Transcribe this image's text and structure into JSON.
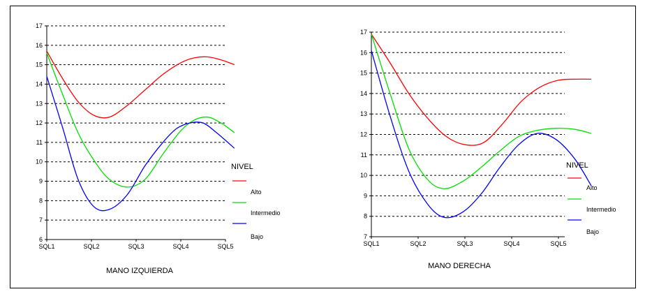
{
  "chart_data": [
    {
      "type": "line",
      "title": "MANO IZQUIERDA",
      "categories": [
        "SQL1",
        "SQL2",
        "SQL3",
        "SQL4",
        "SQL5"
      ],
      "ylim": [
        6,
        17
      ],
      "yticks": [
        6,
        7,
        8,
        9,
        10,
        11,
        12,
        13,
        14,
        15,
        16,
        17
      ],
      "grid": "horizontal dashed",
      "legend": {
        "title": "NIVEL",
        "placement": "right",
        "entries": [
          "Alto",
          "Intermedio",
          "Bajo"
        ]
      },
      "series": [
        {
          "name": "Alto",
          "color": "#ff0000",
          "points": [
            [
              0,
              15.7
            ],
            [
              0.35,
              14.3
            ],
            [
              0.7,
              13.1
            ],
            [
              1.05,
              12.4
            ],
            [
              1.4,
              12.3
            ],
            [
              1.8,
              12.9
            ],
            [
              2.2,
              13.7
            ],
            [
              2.6,
              14.5
            ],
            [
              3.0,
              15.1
            ],
            [
              3.3,
              15.35
            ],
            [
              3.6,
              15.4
            ],
            [
              3.9,
              15.25
            ],
            [
              4.2,
              15.0
            ]
          ]
        },
        {
          "name": "Intermedio",
          "color": "#00e000",
          "points": [
            [
              0,
              15.6
            ],
            [
              0.35,
              13.5
            ],
            [
              0.7,
              11.5
            ],
            [
              1.05,
              10.1
            ],
            [
              1.4,
              9.1
            ],
            [
              1.8,
              8.7
            ],
            [
              2.2,
              9.1
            ],
            [
              2.6,
              10.4
            ],
            [
              3.0,
              11.6
            ],
            [
              3.3,
              12.15
            ],
            [
              3.6,
              12.3
            ],
            [
              3.9,
              12.0
            ],
            [
              4.2,
              11.5
            ]
          ]
        },
        {
          "name": "Bajo",
          "color": "#0000ff",
          "points": [
            [
              0,
              14.4
            ],
            [
              0.35,
              11.8
            ],
            [
              0.7,
              9.1
            ],
            [
              1.05,
              7.7
            ],
            [
              1.4,
              7.55
            ],
            [
              1.8,
              8.3
            ],
            [
              2.2,
              9.8
            ],
            [
              2.6,
              11.0
            ],
            [
              2.9,
              11.7
            ],
            [
              3.2,
              12.0
            ],
            [
              3.5,
              12.0
            ],
            [
              3.8,
              11.5
            ],
            [
              4.2,
              10.7
            ]
          ]
        }
      ]
    },
    {
      "type": "line",
      "title": "MANO DERECHA",
      "categories": [
        "SQL1",
        "SQL2",
        "SQL3",
        "SQL4",
        "SQL5"
      ],
      "ylim": [
        7,
        17
      ],
      "yticks": [
        7,
        8,
        9,
        10,
        11,
        12,
        13,
        14,
        15,
        16,
        17
      ],
      "grid": "horizontal dashed",
      "legend": {
        "title": "NIVEL",
        "placement": "right",
        "entries": [
          "Alto",
          "Intermedio",
          "Bajo"
        ]
      },
      "series": [
        {
          "name": "Alto",
          "color": "#ff0000",
          "points": [
            [
              0,
              16.9
            ],
            [
              0.4,
              15.5
            ],
            [
              0.8,
              14.0
            ],
            [
              1.2,
              12.8
            ],
            [
              1.6,
              11.9
            ],
            [
              2.0,
              11.5
            ],
            [
              2.4,
              11.6
            ],
            [
              2.8,
              12.5
            ],
            [
              3.2,
              13.6
            ],
            [
              3.6,
              14.3
            ],
            [
              4.0,
              14.65
            ],
            [
              4.4,
              14.7
            ],
            [
              4.7,
              14.7
            ]
          ]
        },
        {
          "name": "Intermedio",
          "color": "#00e000",
          "points": [
            [
              0,
              16.9
            ],
            [
              0.4,
              14.0
            ],
            [
              0.8,
              11.3
            ],
            [
              1.2,
              9.8
            ],
            [
              1.55,
              9.35
            ],
            [
              1.95,
              9.7
            ],
            [
              2.35,
              10.4
            ],
            [
              2.75,
              11.2
            ],
            [
              3.15,
              11.9
            ],
            [
              3.55,
              12.2
            ],
            [
              3.95,
              12.3
            ],
            [
              4.35,
              12.25
            ],
            [
              4.7,
              12.05
            ]
          ]
        },
        {
          "name": "Bajo",
          "color": "#0000ff",
          "points": [
            [
              0,
              16.1
            ],
            [
              0.4,
              12.9
            ],
            [
              0.8,
              10.2
            ],
            [
              1.2,
              8.6
            ],
            [
              1.55,
              7.95
            ],
            [
              1.95,
              8.2
            ],
            [
              2.35,
              9.1
            ],
            [
              2.75,
              10.4
            ],
            [
              3.15,
              11.5
            ],
            [
              3.55,
              12.05
            ],
            [
              3.95,
              11.75
            ],
            [
              4.35,
              10.8
            ],
            [
              4.7,
              9.5
            ]
          ]
        }
      ]
    }
  ]
}
